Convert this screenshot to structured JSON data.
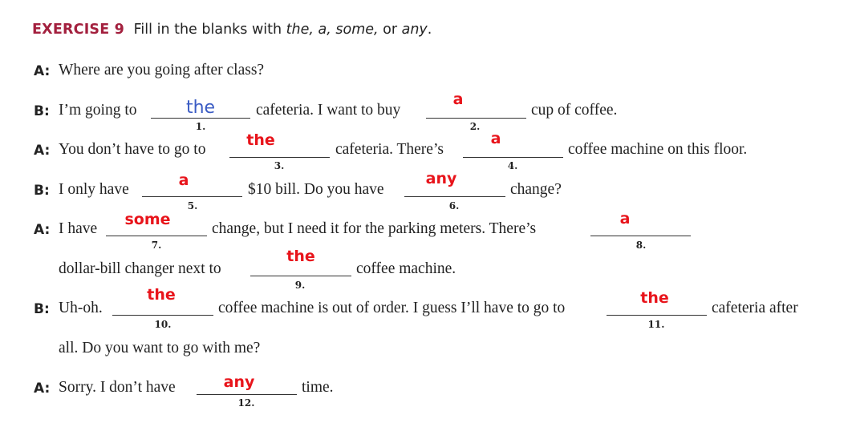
{
  "exercise": {
    "label": "EXERCISE 9",
    "instruction_pre": "Fill in the blanks with ",
    "instruction_words": "the, a, some,",
    "instruction_or": " or ",
    "instruction_last": "any",
    "instruction_end": "."
  },
  "speakers": {
    "a": "A:",
    "b": "B:"
  },
  "texts": {
    "l1": "Where are you going after class?",
    "l2a": "I’m going to",
    "l2b": "cafeteria. I want to buy",
    "l2c": "cup of coffee.",
    "l3a": "You don’t have to go to",
    "l3b": "cafeteria. There’s",
    "l3c": "coffee machine on this floor.",
    "l4a": "I only have",
    "l4b": "$10 bill. Do you have",
    "l4c": "change?",
    "l5a": "I have",
    "l5b": "change, but I need it for the parking meters. There’s",
    "l6a": "dollar-bill changer next to",
    "l6b": "coffee machine.",
    "l7a": "Uh-oh.",
    "l7b": "coffee machine is out of order. I guess I’ll have to go to",
    "l7c": "cafeteria after",
    "l8a": "all. Do you want to go with me?",
    "l9a": "Sorry. I don’t have",
    "l9b": "time."
  },
  "blanks": [
    {
      "number": "1.",
      "answer": "the",
      "style": "handwritten"
    },
    {
      "number": "2.",
      "answer": "a"
    },
    {
      "number": "3.",
      "answer": "the"
    },
    {
      "number": "4.",
      "answer": "a"
    },
    {
      "number": "5.",
      "answer": "a"
    },
    {
      "number": "6.",
      "answer": "any"
    },
    {
      "number": "7.",
      "answer": "some"
    },
    {
      "number": "8.",
      "answer": "a"
    },
    {
      "number": "9.",
      "answer": "the"
    },
    {
      "number": "10.",
      "answer": "the"
    },
    {
      "number": "11.",
      "answer": "the"
    },
    {
      "number": "12.",
      "answer": "any"
    }
  ],
  "colors": {
    "exercise_label": "#a3203e",
    "answer_text": "#e8141b",
    "handwritten_answer": "#3b5cc4"
  }
}
